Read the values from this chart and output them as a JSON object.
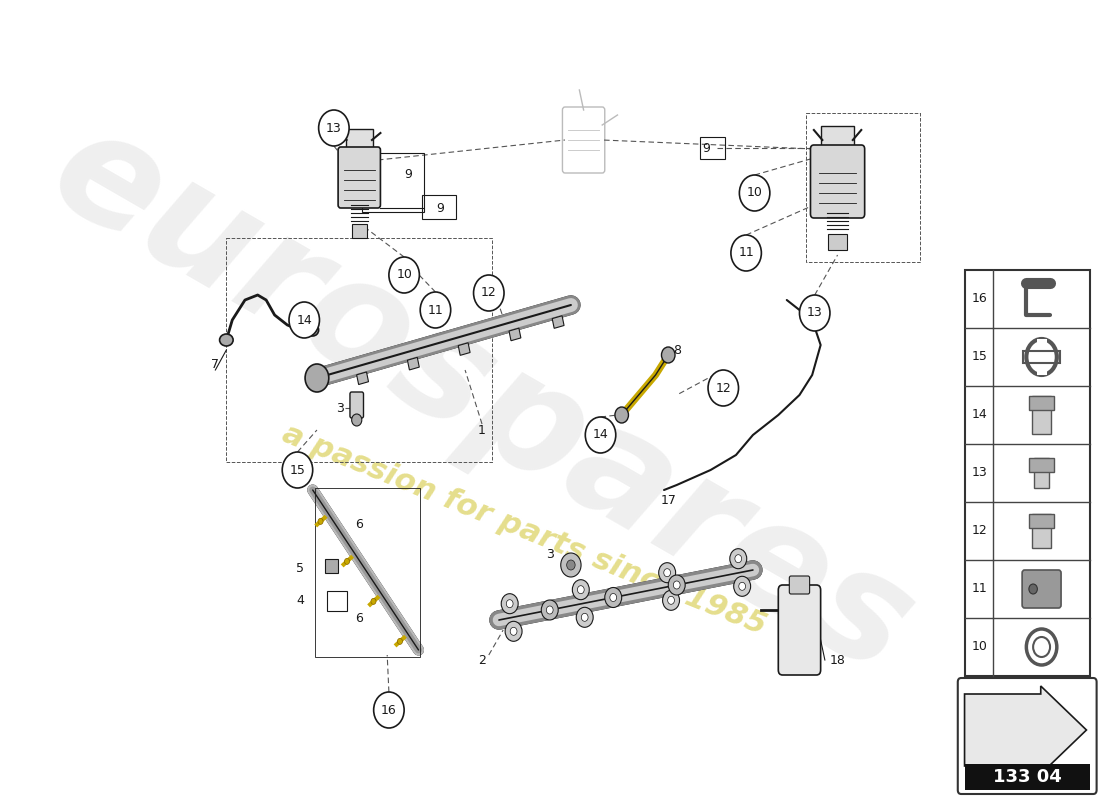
{
  "bg_color": "#ffffff",
  "dc": "#1a1a1a",
  "lc": "#555555",
  "watermark1": "eurospares",
  "watermark2": "a passion for parts since 1985",
  "wm1_color": "#cccccc",
  "wm2_color": "#d4c840",
  "part_number": "133 04"
}
